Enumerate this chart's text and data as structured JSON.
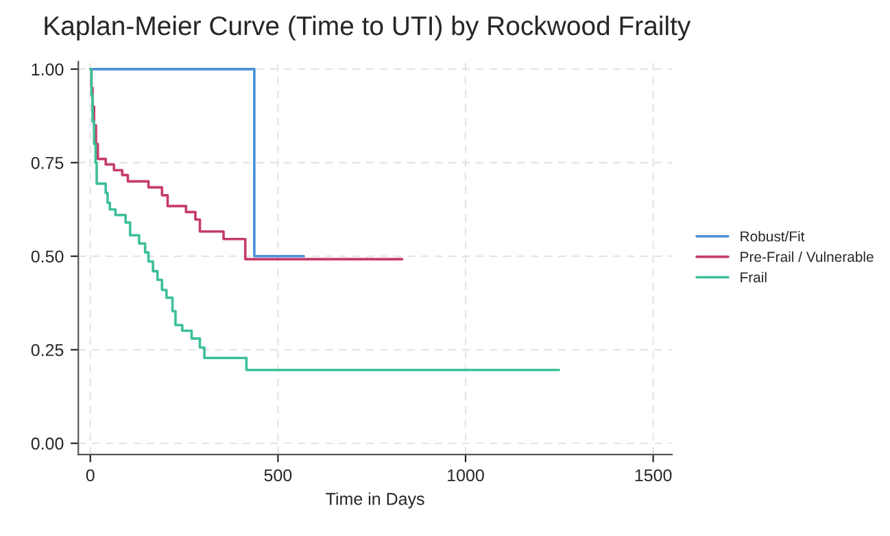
{
  "chart_data": {
    "type": "step",
    "title": "Kaplan-Meier Curve (Time to UTI) by Rockwood Frailty",
    "xlabel": "Time in Days",
    "xlim": [
      -32,
      1550
    ],
    "ylim": [
      -0.03,
      1.02
    ],
    "xticks": [
      0,
      500,
      1000,
      1500
    ],
    "yticks": [
      {
        "value": 0,
        "label": "0.00"
      },
      {
        "value": 0.25,
        "label": "0.25"
      },
      {
        "value": 0.5,
        "label": "0.50"
      },
      {
        "value": 0.75,
        "label": "0.75"
      },
      {
        "value": 1,
        "label": "1.00"
      }
    ],
    "grid": true,
    "legend": "right",
    "series": [
      {
        "name": "Robust/Fit",
        "color": "#4a8fd8",
        "x": [
          0,
          437,
          569
        ],
        "values": [
          1.0,
          0.5,
          0.5
        ]
      },
      {
        "name": "Pre-Frail / Vulnerable",
        "color": "#c63c68",
        "x": [
          0,
          3,
          6,
          10,
          15,
          20,
          41,
          63,
          85,
          100,
          155,
          191,
          206,
          255,
          280,
          292,
          355,
          413,
          831
        ],
        "values": [
          1.0,
          0.95,
          0.9,
          0.85,
          0.8,
          0.76,
          0.745,
          0.73,
          0.717,
          0.7,
          0.684,
          0.663,
          0.634,
          0.618,
          0.598,
          0.566,
          0.546,
          0.492,
          0.492
        ]
      },
      {
        "name": "Frail",
        "color": "#3dbf9a",
        "x": [
          0,
          3,
          6,
          10,
          14,
          17,
          41,
          46,
          52,
          67,
          94,
          106,
          130,
          146,
          155,
          167,
          179,
          191,
          203,
          219,
          227,
          245,
          270,
          292,
          304,
          416,
          1249
        ],
        "values": [
          1.0,
          0.93,
          0.86,
          0.8,
          0.75,
          0.694,
          0.669,
          0.643,
          0.625,
          0.61,
          0.59,
          0.556,
          0.534,
          0.51,
          0.486,
          0.46,
          0.437,
          0.41,
          0.389,
          0.353,
          0.316,
          0.301,
          0.28,
          0.256,
          0.228,
          0.196,
          0.196
        ]
      }
    ]
  }
}
